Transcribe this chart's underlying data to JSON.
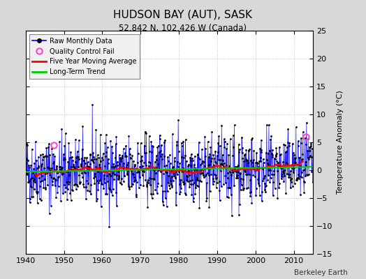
{
  "title": "HUDSON BAY (AUT), SASK",
  "subtitle": "52.842 N, 102.426 W (Canada)",
  "ylabel": "Temperature Anomaly (°C)",
  "watermark": "Berkeley Earth",
  "xlim": [
    1940,
    2015
  ],
  "ylim": [
    -15,
    25
  ],
  "yticks": [
    -15,
    -10,
    -5,
    0,
    5,
    10,
    15,
    20,
    25
  ],
  "xticks": [
    1940,
    1950,
    1960,
    1970,
    1980,
    1990,
    2000,
    2010
  ],
  "bg_color": "#d8d8d8",
  "plot_bg_color": "#ffffff",
  "raw_line_color": "#0000ff",
  "raw_marker_color": "#000000",
  "moving_avg_color": "#ff0000",
  "trend_color": "#00cc00",
  "qc_fail_color": "#ff44cc",
  "seed": 42,
  "trend_slope": 0.012,
  "trend_intercept": -0.3,
  "noise_std": 3.0,
  "qc_times": [
    1947.3,
    2013.2
  ],
  "qc_values": [
    4.5,
    6.0
  ]
}
